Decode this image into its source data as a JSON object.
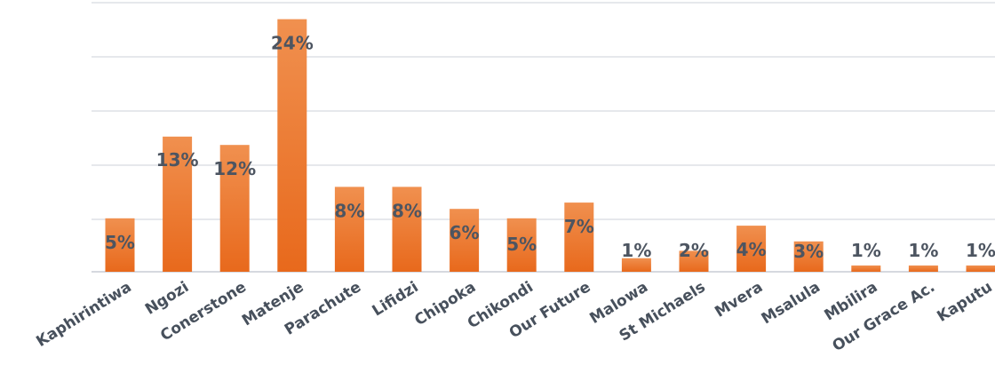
{
  "chart_data": {
    "type": "bar",
    "title": "",
    "xlabel": "",
    "ylabel": "",
    "categories": [
      "Kaphirintiwa",
      "Ngozi",
      "Conerstone",
      "Matenje",
      "Parachute",
      "Lifidzi",
      "Chipoka",
      "Chikondi",
      "Our Future",
      "Malowa",
      "St Michaels",
      "Mvera",
      "Msalula",
      "Mbilira",
      "Our Grace Ac.",
      "Kaputu"
    ],
    "values": [
      5,
      13,
      12,
      24,
      8,
      8,
      6,
      5,
      7,
      1,
      2,
      4,
      3,
      1,
      1,
      1
    ],
    "bar_heights_percent": [
      5.1,
      12.9,
      12.1,
      24.1,
      8.1,
      8.1,
      6.0,
      5.1,
      6.6,
      1.3,
      2.0,
      4.4,
      2.9,
      0.6,
      0.6,
      0.6
    ],
    "labels": [
      "5%",
      "13%",
      "12%",
      "24%",
      "8%",
      "8%",
      "6%",
      "5%",
      "7%",
      "1%",
      "2%",
      "4%",
      "3%",
      "1%",
      "1%",
      "1%"
    ],
    "ylim": [
      0,
      25
    ],
    "grid": true,
    "legend": "none",
    "colors": {
      "bar_top": "#f0904f",
      "bar_bottom": "#e8691c",
      "label": "#4d5561",
      "grid": "#dde0e6"
    }
  }
}
